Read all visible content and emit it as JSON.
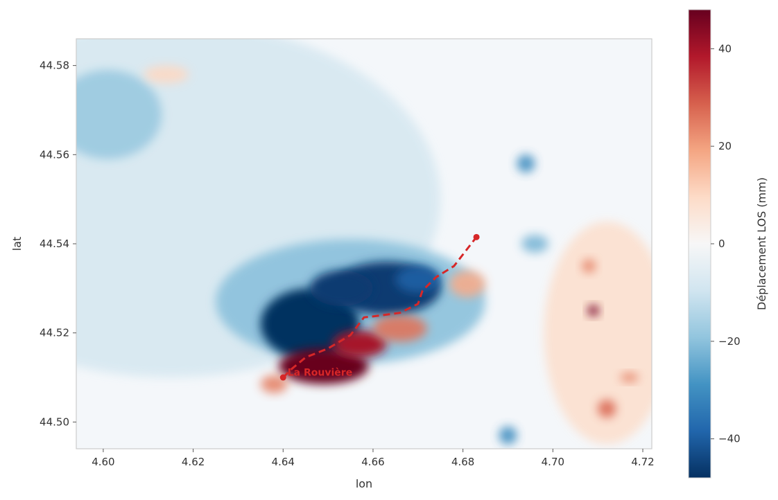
{
  "chart_data": {
    "type": "heatmap",
    "title": "",
    "xlabel": "lon",
    "ylabel": "lat",
    "xlim": [
      4.594,
      4.722
    ],
    "ylim": [
      44.494,
      44.586
    ],
    "xticks": [
      {
        "value": 4.6,
        "label": "4.60"
      },
      {
        "value": 4.62,
        "label": "4.62"
      },
      {
        "value": 4.64,
        "label": "4.64"
      },
      {
        "value": 4.66,
        "label": "4.66"
      },
      {
        "value": 4.68,
        "label": "4.68"
      },
      {
        "value": 4.7,
        "label": "4.70"
      },
      {
        "value": 4.72,
        "label": "4.72"
      }
    ],
    "yticks": [
      {
        "value": 44.5,
        "label": "44.50"
      },
      {
        "value": 44.52,
        "label": "44.52"
      },
      {
        "value": 44.54,
        "label": "44.54"
      },
      {
        "value": 44.56,
        "label": "44.56"
      },
      {
        "value": 44.58,
        "label": "44.58"
      }
    ],
    "colorbar": {
      "label": "Déplacement LOS (mm)",
      "colormap": "RdBu_r",
      "vmin": -48,
      "vmax": 48,
      "ticks": [
        {
          "value": 40,
          "label": "40"
        },
        {
          "value": 20,
          "label": "20"
        },
        {
          "value": 0,
          "label": "0"
        },
        {
          "value": -20,
          "label": "−20"
        },
        {
          "value": -40,
          "label": "−40"
        }
      ],
      "colors": [
        "#053061",
        "#2166ac",
        "#4393c3",
        "#92c5de",
        "#d1e5f0",
        "#f7f7f7",
        "#fddbc7",
        "#f4a582",
        "#d6604d",
        "#b2182b",
        "#67001f"
      ]
    },
    "fault_trace": {
      "color": "#d62728",
      "style": "dashed",
      "points": [
        [
          4.64,
          44.51
        ],
        [
          4.642,
          44.512
        ],
        [
          4.645,
          44.5145
        ],
        [
          4.65,
          44.5165
        ],
        [
          4.655,
          44.5195
        ],
        [
          4.658,
          44.5235
        ],
        [
          4.66,
          44.5237
        ],
        [
          4.666,
          44.5245
        ],
        [
          4.67,
          44.5265
        ],
        [
          4.671,
          44.5295
        ],
        [
          4.674,
          44.5325
        ],
        [
          4.678,
          44.535
        ],
        [
          4.683,
          44.5415
        ]
      ],
      "endpoints": [
        [
          4.64,
          44.51
        ],
        [
          4.683,
          44.5415
        ]
      ]
    },
    "annotations": [
      {
        "text": "La Rouvière",
        "lon": 4.641,
        "lat": 44.5112
      }
    ],
    "blobs": [
      {
        "lon": 4.615,
        "lat": 44.55,
        "rx": 0.06,
        "ry": 0.04,
        "value": -8
      },
      {
        "lon": 4.601,
        "lat": 44.569,
        "rx": 0.012,
        "ry": 0.01,
        "value": -18
      },
      {
        "lon": 4.655,
        "lat": 44.527,
        "rx": 0.03,
        "ry": 0.014,
        "value": -20
      },
      {
        "lon": 4.646,
        "lat": 44.522,
        "rx": 0.011,
        "ry": 0.008,
        "value": -48
      },
      {
        "lon": 4.663,
        "lat": 44.53,
        "rx": 0.012,
        "ry": 0.006,
        "value": -46
      },
      {
        "lon": 4.653,
        "lat": 44.53,
        "rx": 0.007,
        "ry": 0.004,
        "value": -46
      },
      {
        "lon": 4.67,
        "lat": 44.532,
        "rx": 0.005,
        "ry": 0.003,
        "value": -40
      },
      {
        "lon": 4.649,
        "lat": 44.5125,
        "rx": 0.01,
        "ry": 0.004,
        "value": 48
      },
      {
        "lon": 4.657,
        "lat": 44.5175,
        "rx": 0.006,
        "ry": 0.003,
        "value": 40
      },
      {
        "lon": 4.666,
        "lat": 44.521,
        "rx": 0.006,
        "ry": 0.003,
        "value": 26
      },
      {
        "lon": 4.681,
        "lat": 44.531,
        "rx": 0.004,
        "ry": 0.003,
        "value": 18
      },
      {
        "lon": 4.614,
        "lat": 44.578,
        "rx": 0.005,
        "ry": 0.002,
        "value": 10
      },
      {
        "lon": 4.694,
        "lat": 44.558,
        "rx": 0.002,
        "ry": 0.002,
        "value": -30
      },
      {
        "lon": 4.696,
        "lat": 44.54,
        "rx": 0.003,
        "ry": 0.002,
        "value": -22
      },
      {
        "lon": 4.69,
        "lat": 44.497,
        "rx": 0.002,
        "ry": 0.002,
        "value": -30
      },
      {
        "lon": 4.712,
        "lat": 44.52,
        "rx": 0.014,
        "ry": 0.025,
        "value": 8
      },
      {
        "lon": 4.709,
        "lat": 44.525,
        "rx": 0.0012,
        "ry": 0.0012,
        "value": 46
      },
      {
        "lon": 4.712,
        "lat": 44.503,
        "rx": 0.002,
        "ry": 0.002,
        "value": 28
      },
      {
        "lon": 4.708,
        "lat": 44.535,
        "rx": 0.0015,
        "ry": 0.0015,
        "value": 24
      },
      {
        "lon": 4.717,
        "lat": 44.51,
        "rx": 0.002,
        "ry": 0.001,
        "value": 24
      },
      {
        "lon": 4.638,
        "lat": 44.5085,
        "rx": 0.003,
        "ry": 0.002,
        "value": 24
      }
    ]
  }
}
